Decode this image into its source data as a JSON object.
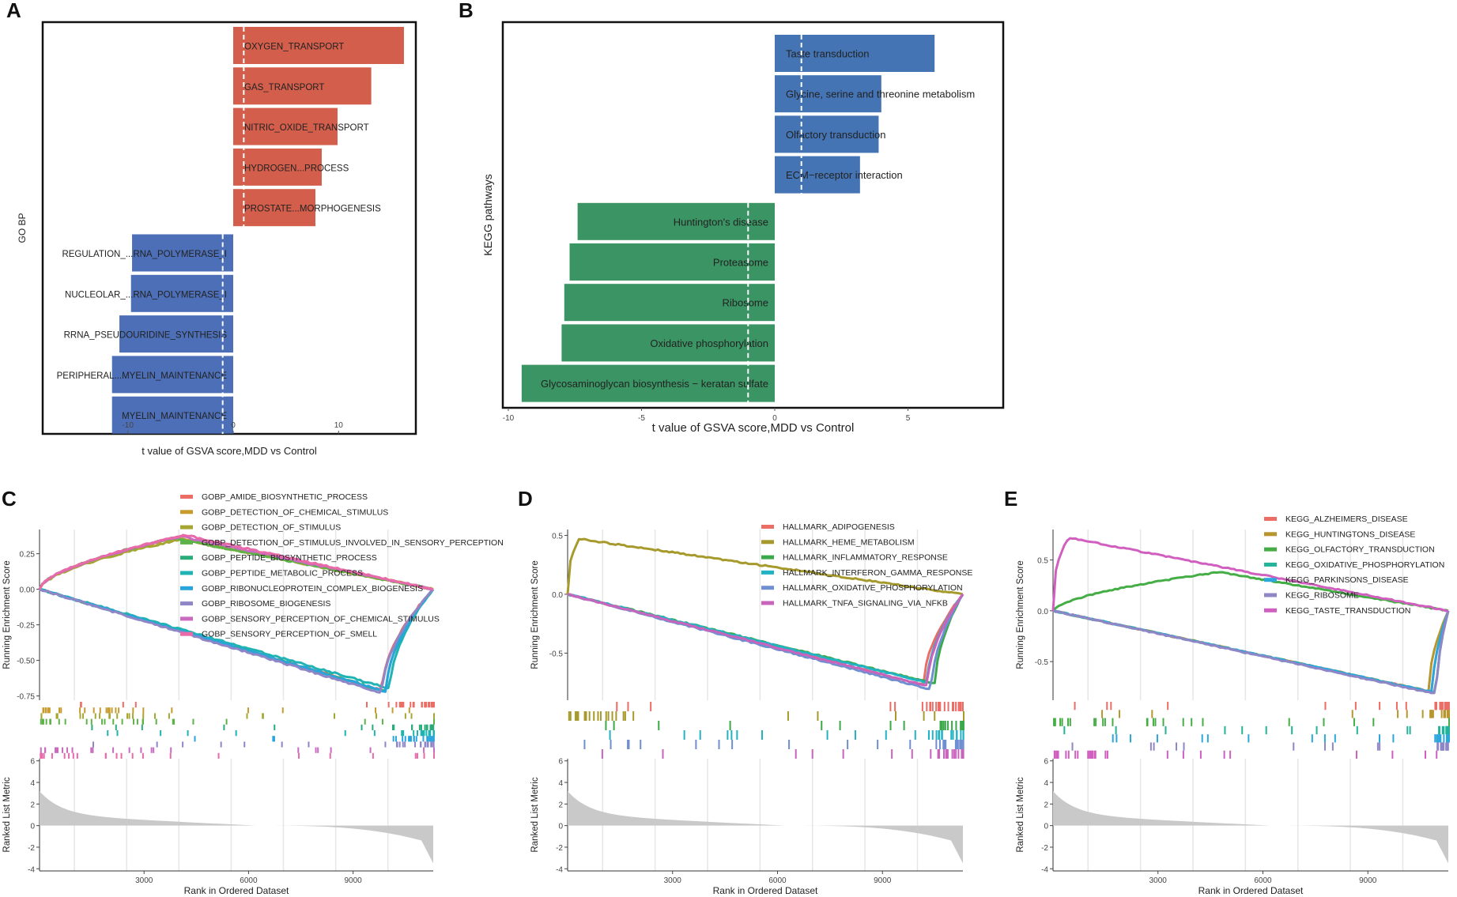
{
  "figure_title": "",
  "colors": {
    "up": "#d35e4b",
    "down": "#4c6fb7",
    "kegg_up": "#4474b4",
    "kegg_down": "#3a9464",
    "axis": "#222222",
    "grid": "#e6e6e6",
    "metric": "#c9c9c9"
  },
  "chart_data": [
    {
      "panel": "A",
      "type": "bar",
      "orientation": "horizontal",
      "ylabel": "GO BP",
      "xlabel": "t value of GSVA score,MDD vs Control",
      "xlim": [
        -18.5,
        17
      ],
      "xticks": [
        -10,
        0,
        10
      ],
      "cutoff": [
        -1,
        1
      ],
      "bars": [
        {
          "label": "OXYGEN_TRANSPORT",
          "value": 16.2
        },
        {
          "label": "GAS_TRANSPORT",
          "value": 13.1
        },
        {
          "label": "NITRIC_OXIDE_TRANSPORT",
          "value": 9.9
        },
        {
          "label": "HYDROGEN...PROCESS",
          "value": 8.4
        },
        {
          "label": "PROSTATE...MORPHOGENESIS",
          "value": 7.8
        },
        {
          "label": "REGULATION_...RNA_POLYMERASE_I",
          "value": -9.6
        },
        {
          "label": "NUCLEOLAR_...RNA_POLYMERASE_I",
          "value": -9.7
        },
        {
          "label": "RRNA_PSEUDOURIDINE_SYNTHESIS",
          "value": -10.8
        },
        {
          "label": "PERIPHERAL...MYELIN_MAINTENANCE",
          "value": -11.5
        },
        {
          "label": "MYELIN_MAINTENANCE",
          "value": -11.5
        }
      ]
    },
    {
      "panel": "B",
      "type": "bar",
      "orientation": "horizontal",
      "ylabel": "KEGG pathways",
      "xlabel": "t value of GSVA score,MDD vs Control",
      "xlim": [
        -10.2,
        8.5
      ],
      "xticks": [
        -10,
        -5,
        0,
        5
      ],
      "cutoff": [
        -1,
        1
      ],
      "bars": [
        {
          "label": "Taste transduction",
          "value": 6.0
        },
        {
          "label": "Glycine, serine and threonine metabolism",
          "value": 4.0
        },
        {
          "label": "Olfactory transduction",
          "value": 3.9
        },
        {
          "label": "ECM−receptor interaction",
          "value": 3.2
        },
        {
          "label": "Huntington's disease",
          "value": -7.4
        },
        {
          "label": "Proteasome",
          "value": -7.7
        },
        {
          "label": "Ribosome",
          "value": -7.9
        },
        {
          "label": "Oxidative phosphorylation",
          "value": -8.0
        },
        {
          "label": "Glycosaminoglycan biosynthesis − keratan sulfate",
          "value": -9.5
        }
      ]
    },
    {
      "panel": "C",
      "type": "line",
      "ylabel": "Running Enrichment Score",
      "ylabel2": "Ranked List Metric",
      "xlabel": "Rank in Ordered Dataset",
      "xlim": [
        0,
        11300
      ],
      "ylim": [
        -0.78,
        0.42
      ],
      "yticks": [
        -0.75,
        -0.5,
        -0.25,
        0.0,
        0.25
      ],
      "ytick_labels": [
        "-0.75",
        "-0.50",
        "-0.25",
        "0.00",
        "0.25"
      ],
      "xticks": [
        3000,
        6000,
        9000
      ],
      "metric_ylim": [
        -4.2,
        6.2
      ],
      "metric_yticks": [
        -4,
        -2,
        0,
        2,
        4,
        6
      ],
      "series": [
        {
          "name": "GOBP_AMIDE_BIOSYNTHETIC_PROCESS",
          "color": "#ec6d66",
          "es": -0.71,
          "peak": 0.87
        },
        {
          "name": "GOBP_DETECTION_OF_CHEMICAL_STIMULUS",
          "color": "#c89b2f",
          "es": 0.36,
          "peak": 0.35
        },
        {
          "name": "GOBP_DETECTION_OF_STIMULUS",
          "color": "#a6a632",
          "es": 0.35,
          "peak": 0.36
        },
        {
          "name": "GOBP_DETECTION_OF_STIMULUS_INVOLVED_IN_SENSORY_PERCEPTION",
          "color": "#5db348",
          "es": 0.36,
          "peak": 0.34
        },
        {
          "name": "GOBP_PEPTIDE_BIOSYNTHETIC_PROCESS",
          "color": "#2bab7a",
          "es": -0.72,
          "peak": 0.88
        },
        {
          "name": "GOBP_PEPTIDE_METABOLIC_PROCESS",
          "color": "#20b3b3",
          "es": -0.7,
          "peak": 0.89
        },
        {
          "name": "GOBP_RIBONUCLEOPROTEIN_COMPLEX_BIOGENESIS",
          "color": "#2aa5dc",
          "es": -0.72,
          "peak": 0.88
        },
        {
          "name": "GOBP_RIBOSOME_BIOGENESIS",
          "color": "#8f86c7",
          "es": -0.73,
          "peak": 0.87
        },
        {
          "name": "GOBP_SENSORY_PERCEPTION_OF_CHEMICAL_STIMULUS",
          "color": "#c96bc1",
          "es": 0.37,
          "peak": 0.36
        },
        {
          "name": "GOBP_SENSORY_PERCEPTION_OF_SMELL",
          "color": "#e86aa9",
          "es": 0.38,
          "peak": 0.37
        }
      ]
    },
    {
      "panel": "D",
      "type": "line",
      "ylabel": "Running Enrichment Score",
      "ylabel2": "Ranked List Metric",
      "xlabel": "Rank in Ordered Dataset",
      "xlim": [
        0,
        11300
      ],
      "ylim": [
        -0.9,
        0.55
      ],
      "yticks": [
        -0.5,
        0.0,
        0.5
      ],
      "ytick_labels": [
        "-0.5",
        "0.0",
        "0.5"
      ],
      "xticks": [
        3000,
        6000,
        9000
      ],
      "metric_ylim": [
        -4.2,
        6.2
      ],
      "metric_yticks": [
        -4,
        -2,
        0,
        2,
        4,
        6
      ],
      "series": [
        {
          "name": "HALLMARK_ADIPOGENESIS",
          "color": "#ec6d66",
          "es": -0.77,
          "peak": 0.9
        },
        {
          "name": "HALLMARK_HEME_METABOLISM",
          "color": "#a79a2c",
          "es": 0.47,
          "peak": 0.03
        },
        {
          "name": "HALLMARK_INFLAMMATORY_RESPONSE",
          "color": "#3aa94a",
          "es": -0.76,
          "peak": 0.93
        },
        {
          "name": "HALLMARK_INTERFERON_GAMMA_RESPONSE",
          "color": "#22b3c2",
          "es": -0.75,
          "peak": 0.91
        },
        {
          "name": "HALLMARK_OXIDATIVE_PHOSPHORYLATION",
          "color": "#6f8fd1",
          "es": -0.81,
          "peak": 0.92
        },
        {
          "name": "HALLMARK_TNFA_SIGNALING_VIA_NFKB",
          "color": "#c964bd",
          "es": -0.78,
          "peak": 0.91
        }
      ]
    },
    {
      "panel": "E",
      "type": "line",
      "ylabel": "Running Enrichment Score",
      "ylabel2": "Ranked List Metric",
      "xlabel": "Rank in Ordered Dataset",
      "xlim": [
        0,
        11300
      ],
      "ylim": [
        -0.88,
        0.8
      ],
      "yticks": [
        -0.5,
        0.0,
        0.5
      ],
      "ytick_labels": [
        "-0.5",
        "0.0",
        "0.5"
      ],
      "xticks": [
        3000,
        6000,
        9000
      ],
      "metric_ylim": [
        -4.2,
        6.2
      ],
      "metric_yticks": [
        -4,
        -2,
        0,
        2,
        4,
        6
      ],
      "series": [
        {
          "name": "KEGG_ALZHEIMERS_DISEASE",
          "color": "#ec6d66",
          "es": -0.8,
          "peak": 0.96
        },
        {
          "name": "KEGG_HUNTINGTONS_DISEASE",
          "color": "#b7962d",
          "es": -0.79,
          "peak": 0.95
        },
        {
          "name": "KEGG_OLFACTORY_TRANSDUCTION",
          "color": "#45ad45",
          "es": 0.38,
          "peak": 0.42
        },
        {
          "name": "KEGG_OXIDATIVE_PHOSPHORYLATION",
          "color": "#22b39a",
          "es": -0.81,
          "peak": 0.97
        },
        {
          "name": "KEGG_PARKINSONS_DISEASE",
          "color": "#2ba7dd",
          "es": -0.8,
          "peak": 0.96
        },
        {
          "name": "KEGG_RIBOSOME",
          "color": "#8e86c6",
          "es": -0.82,
          "peak": 0.97
        },
        {
          "name": "KEGG_TASTE_TRANSDUCTION",
          "color": "#d05fbf",
          "es": 0.72,
          "peak": 0.04
        }
      ]
    }
  ]
}
